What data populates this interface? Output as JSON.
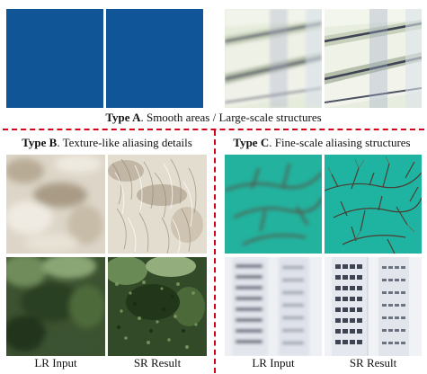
{
  "figure": {
    "type_a_label": "Type A",
    "type_a_caption": ". Smooth areas / Large-scale structures",
    "type_b_label": "Type B",
    "type_b_caption": ". Texture-like aliasing details",
    "type_c_label": "Type C",
    "type_c_caption": ". Fine-scale aliasing structures",
    "left_lr_label": "LR Input",
    "left_sr_label": "SR Result",
    "right_lr_label": "LR Input",
    "right_sr_label": "SR Result"
  },
  "colors": {
    "divider": "#d0021b",
    "blue_panel": "#115a96",
    "teal_panel": "#1fb2a0"
  }
}
